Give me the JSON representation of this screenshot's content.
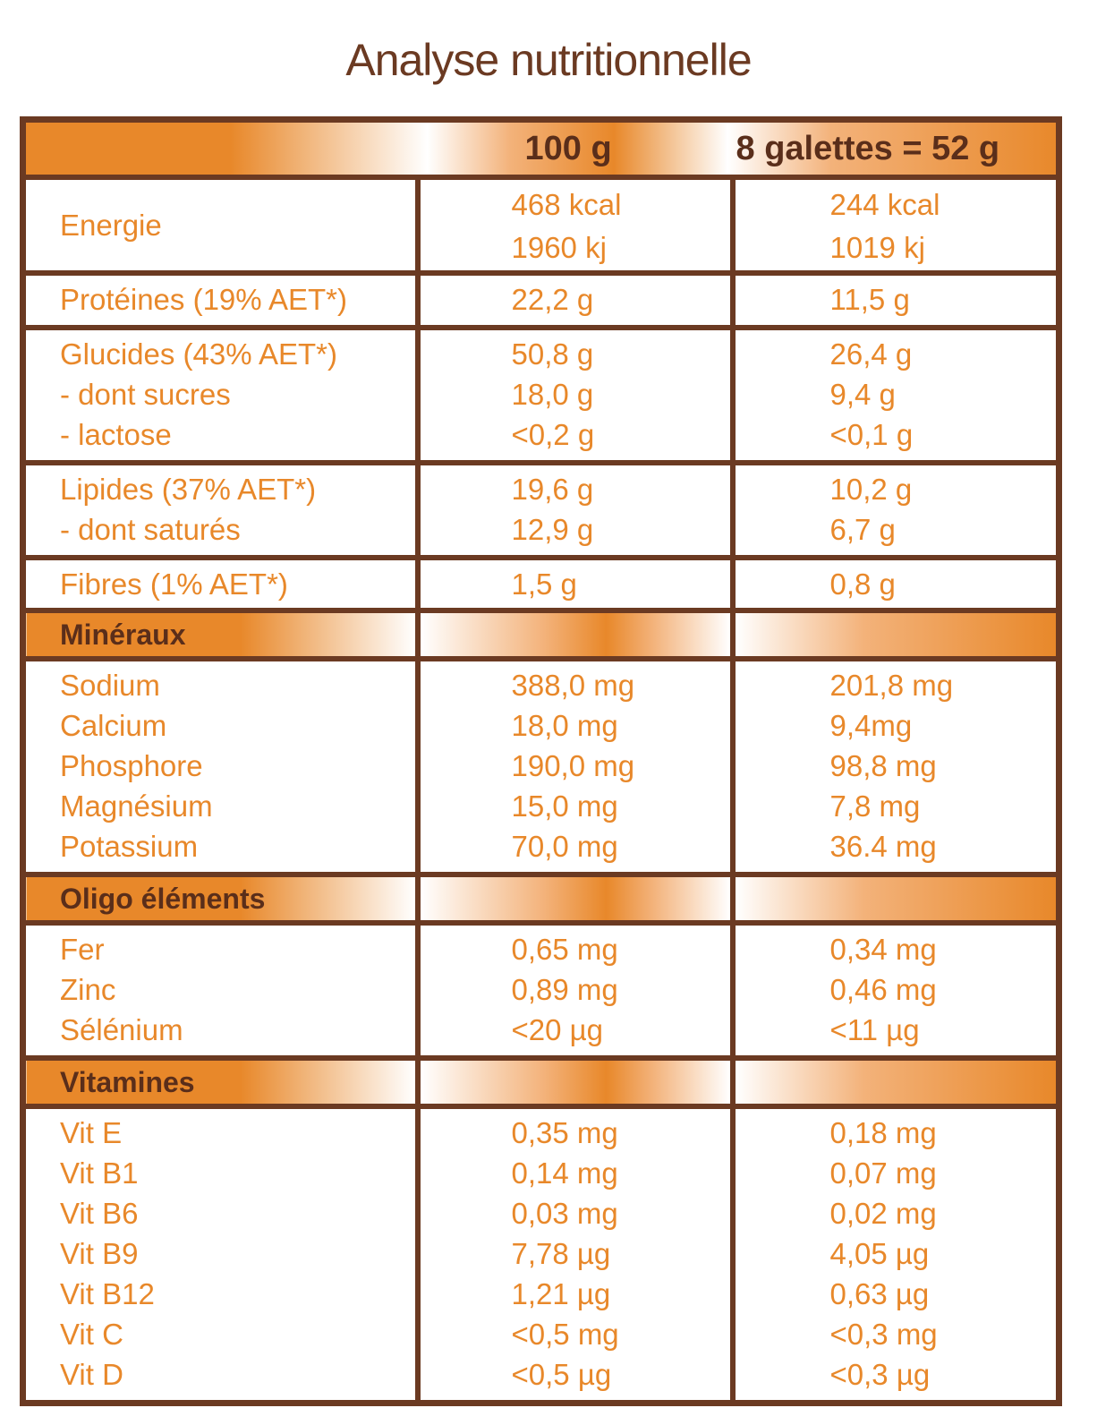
{
  "title": "Analyse nutritionnelle",
  "header": {
    "col2": "100 g",
    "col3": "8 galettes = 52 g"
  },
  "energie": {
    "label": "Energie",
    "v2": [
      "468 kcal",
      "1960 kj"
    ],
    "v3": [
      "244 kcal",
      "1019 kj"
    ]
  },
  "proteines": {
    "labels": [
      "Protéines (19% AET*)"
    ],
    "v2": [
      "22,2 g"
    ],
    "v3": [
      "11,5 g"
    ]
  },
  "glucides": {
    "labels": [
      "Glucides (43% AET*)",
      "- dont sucres",
      "- lactose"
    ],
    "v2": [
      "50,8 g",
      "18,0 g",
      "<0,2 g"
    ],
    "v3": [
      "26,4 g",
      "9,4 g",
      "<0,1 g"
    ]
  },
  "lipides": {
    "labels": [
      "Lipides (37% AET*)",
      "- dont saturés"
    ],
    "v2": [
      "19,6 g",
      "12,9 g"
    ],
    "v3": [
      "10,2 g",
      "6,7 g"
    ]
  },
  "fibres": {
    "labels": [
      "Fibres (1% AET*)"
    ],
    "v2": [
      "1,5 g"
    ],
    "v3": [
      "0,8 g"
    ]
  },
  "mineraux": {
    "title": "Minéraux",
    "labels": [
      "Sodium",
      "Calcium",
      "Phosphore",
      "Magnésium",
      "Potassium"
    ],
    "v2": [
      "388,0 mg",
      "18,0 mg",
      "190,0 mg",
      "15,0 mg",
      "70,0 mg"
    ],
    "v3": [
      "201,8 mg",
      "9,4mg",
      "98,8 mg",
      "7,8 mg",
      "36.4 mg"
    ]
  },
  "oligo": {
    "title": "Oligo éléments",
    "labels": [
      "Fer",
      "Zinc",
      "Sélénium"
    ],
    "v2": [
      "0,65 mg",
      "0,89 mg",
      "<20 µg"
    ],
    "v3": [
      "0,34 mg",
      "0,46 mg",
      "<11 µg"
    ]
  },
  "vitamines": {
    "title": "Vitamines",
    "labels": [
      "Vit E",
      "Vit B1",
      "Vit B6",
      "Vit B9",
      "Vit B12",
      "Vit C",
      "Vit D"
    ],
    "v2": [
      "0,35 mg",
      "0,14 mg",
      "0,03 mg",
      "7,78 µg",
      "1,21 µg",
      "<0,5 mg",
      "<0,5 µg"
    ],
    "v3": [
      "0,18 mg",
      "0,07 mg",
      "0,02 mg",
      "4,05 µg",
      "0,63 µg",
      "<0,3 mg",
      "<0,3 µg"
    ]
  }
}
